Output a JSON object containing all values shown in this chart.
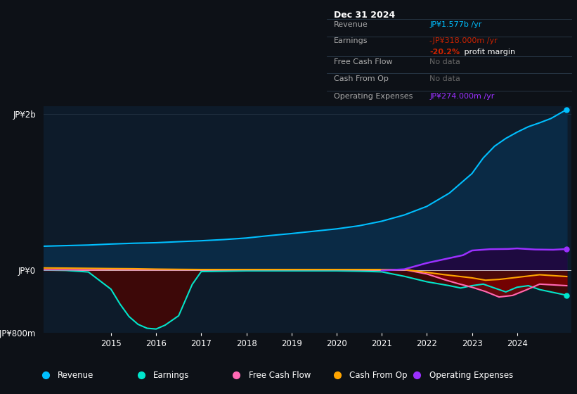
{
  "bg_color": "#0d1117",
  "plot_bg_color": "#0d1b2a",
  "ylim": [
    -800,
    2100
  ],
  "yticks": [
    -800,
    0,
    2000
  ],
  "ytick_labels": [
    "-JP¥800m",
    "JP¥0",
    "JP¥2b"
  ],
  "revenue_color": "#00bfff",
  "revenue_fill": "#0a2a45",
  "earnings_color": "#00e5cc",
  "earnings_fill": "#3d0808",
  "free_cashflow_color": "#ff69b4",
  "cash_from_op_color": "#ffa500",
  "operating_expenses_color": "#9b30ff",
  "operating_expenses_fill": "#1e0a40",
  "earnings_red_fill": "#8b0000",
  "legend_items": [
    {
      "label": "Revenue",
      "color": "#00bfff"
    },
    {
      "label": "Earnings",
      "color": "#00e5cc"
    },
    {
      "label": "Free Cash Flow",
      "color": "#ff69b4"
    },
    {
      "label": "Cash From Op",
      "color": "#ffa500"
    },
    {
      "label": "Operating Expenses",
      "color": "#9b30ff"
    }
  ],
  "revenue_x": [
    2013.5,
    2014.0,
    2014.5,
    2015.0,
    2015.5,
    2016.0,
    2016.5,
    2017.0,
    2017.5,
    2018.0,
    2018.5,
    2019.0,
    2019.5,
    2020.0,
    2020.5,
    2021.0,
    2021.5,
    2022.0,
    2022.5,
    2023.0,
    2023.25,
    2023.5,
    2023.75,
    2024.0,
    2024.25,
    2024.5,
    2024.75,
    2025.1
  ],
  "revenue_y": [
    310,
    318,
    325,
    338,
    348,
    355,
    368,
    380,
    395,
    415,
    445,
    472,
    502,
    532,
    572,
    630,
    710,
    820,
    990,
    1240,
    1440,
    1590,
    1690,
    1770,
    1840,
    1890,
    1945,
    2060
  ],
  "earnings_x": [
    2013.5,
    2014.0,
    2014.5,
    2015.0,
    2015.2,
    2015.4,
    2015.6,
    2015.8,
    2016.0,
    2016.2,
    2016.5,
    2016.8,
    2017.0,
    2017.5,
    2018.0,
    2018.5,
    2019.0,
    2019.5,
    2020.0,
    2020.5,
    2021.0,
    2021.5,
    2022.0,
    2022.5,
    2022.75,
    2023.0,
    2023.25,
    2023.5,
    2023.75,
    2024.0,
    2024.25,
    2024.5,
    2025.1
  ],
  "earnings_y": [
    5,
    0,
    -20,
    -240,
    -430,
    -590,
    -690,
    -740,
    -750,
    -700,
    -580,
    -180,
    -15,
    -10,
    -5,
    -5,
    -5,
    -5,
    -5,
    -10,
    -18,
    -75,
    -145,
    -195,
    -225,
    -195,
    -175,
    -225,
    -275,
    -215,
    -195,
    -245,
    -318
  ],
  "free_cashflow_x": [
    2013.5,
    2014.0,
    2014.5,
    2015.0,
    2015.5,
    2016.0,
    2016.5,
    2017.0,
    2017.5,
    2018.0,
    2018.5,
    2019.0,
    2019.5,
    2020.0,
    2020.5,
    2021.0,
    2021.5,
    2022.0,
    2022.4,
    2022.7,
    2023.0,
    2023.3,
    2023.6,
    2023.9,
    2024.2,
    2024.5,
    2025.1
  ],
  "free_cashflow_y": [
    8,
    8,
    8,
    12,
    10,
    10,
    10,
    10,
    10,
    10,
    10,
    10,
    10,
    10,
    10,
    10,
    10,
    -45,
    -120,
    -170,
    -215,
    -270,
    -340,
    -320,
    -250,
    -175,
    -195
  ],
  "cash_from_op_x": [
    2013.5,
    2014.0,
    2014.5,
    2015.0,
    2015.5,
    2016.0,
    2016.5,
    2017.0,
    2017.5,
    2018.0,
    2018.5,
    2019.0,
    2019.5,
    2020.0,
    2020.5,
    2021.0,
    2021.5,
    2022.0,
    2022.4,
    2022.7,
    2023.0,
    2023.3,
    2023.6,
    2023.9,
    2024.2,
    2024.5,
    2025.1
  ],
  "cash_from_op_y": [
    32,
    30,
    27,
    24,
    22,
    17,
    14,
    12,
    12,
    12,
    12,
    12,
    12,
    12,
    12,
    12,
    12,
    -25,
    -55,
    -75,
    -95,
    -125,
    -115,
    -95,
    -75,
    -55,
    -78
  ],
  "operating_expenses_x": [
    2021.0,
    2021.5,
    2022.0,
    2022.4,
    2022.8,
    2023.0,
    2023.4,
    2023.8,
    2024.0,
    2024.4,
    2024.8,
    2025.1
  ],
  "operating_expenses_y": [
    0,
    15,
    95,
    145,
    195,
    255,
    272,
    275,
    282,
    268,
    265,
    274
  ],
  "xlim": [
    2013.5,
    2025.2
  ],
  "xticks": [
    2015,
    2016,
    2017,
    2018,
    2019,
    2020,
    2021,
    2022,
    2023,
    2024
  ]
}
